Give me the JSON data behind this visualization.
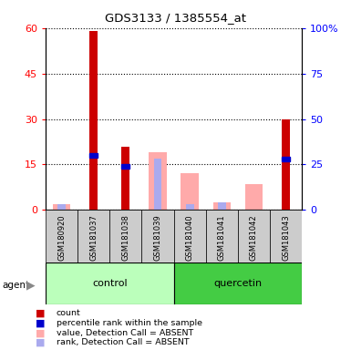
{
  "title": "GDS3133 / 1385554_at",
  "samples": [
    "GSM180920",
    "GSM181037",
    "GSM181038",
    "GSM181039",
    "GSM181040",
    "GSM181041",
    "GSM181042",
    "GSM181043"
  ],
  "groups": [
    "control",
    "control",
    "control",
    "control",
    "quercetin",
    "quercetin",
    "quercetin",
    "quercetin"
  ],
  "group_colors": {
    "control": "#bbffbb",
    "quercetin": "#44cc44"
  },
  "count_values": [
    0,
    59,
    21,
    0,
    0,
    0,
    0,
    30
  ],
  "percentile_rank_values": [
    0,
    30,
    24,
    0,
    0,
    0,
    0,
    28
  ],
  "absent_value_values": [
    3,
    0,
    0,
    32,
    20,
    4,
    14,
    0
  ],
  "absent_rank_values": [
    3,
    0,
    0,
    28,
    3,
    4,
    0,
    0
  ],
  "left_ylim": [
    0,
    60
  ],
  "left_yticks": [
    0,
    15,
    30,
    45,
    60
  ],
  "right_yticks": [
    0,
    25,
    50,
    75,
    100
  ],
  "right_yticklabels": [
    "0",
    "25",
    "50",
    "75",
    "100%"
  ],
  "count_color": "#cc0000",
  "percentile_color": "#0000cc",
  "absent_value_color": "#ffaaaa",
  "absent_rank_color": "#aaaaee",
  "bar_width": 0.55,
  "thin_bar_width": 0.25,
  "grid_color": "black"
}
